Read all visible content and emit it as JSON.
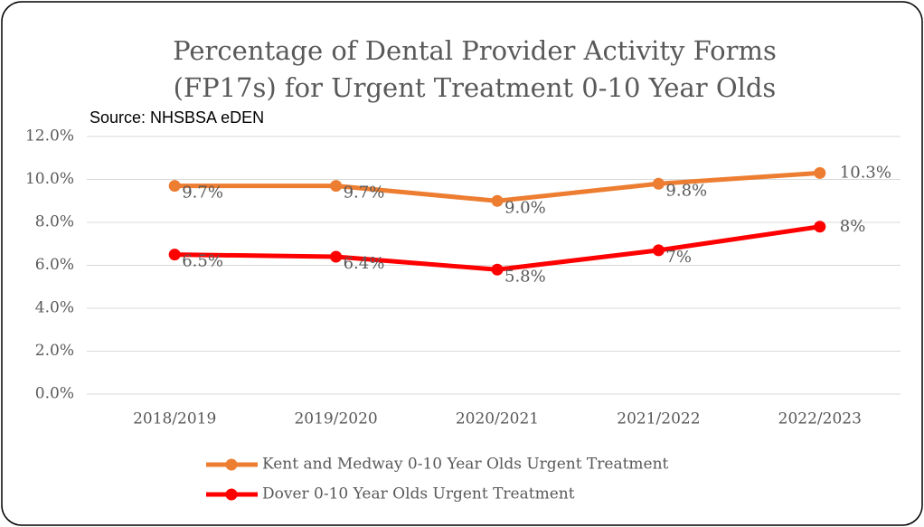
{
  "chart_data": {
    "type": "line",
    "title": [
      "Percentage of Dental Provider Activity Forms",
      "(FP17s) for Urgent Treatment 0-10 Year Olds"
    ],
    "subtitle": "Source: NHSBSA eDEN",
    "categories": [
      "2018/2019",
      "2019/2020",
      "2020/2021",
      "2021/2022",
      "2022/2023"
    ],
    "series": [
      {
        "name": "Kent and Medway 0-10 Year Olds Urgent Treatment",
        "color": "#ed7d31",
        "values": [
          9.7,
          9.7,
          9.0,
          9.8,
          10.3
        ],
        "value_labels": [
          "9.7%",
          "9.7%",
          "9.0%",
          "9.8%",
          "10.3%"
        ]
      },
      {
        "name": "Dover 0-10 Year Olds Urgent Treatment",
        "color": "#ff0000",
        "values": [
          6.5,
          6.4,
          5.8,
          6.7,
          7.8
        ],
        "value_labels": [
          "6.5%",
          "6.4%",
          "5.8%",
          "7%",
          "8%"
        ]
      }
    ],
    "ylim": [
      0,
      12
    ],
    "yticks": [
      {
        "value": 0,
        "label": "0.0%"
      },
      {
        "value": 2,
        "label": "2.0%"
      },
      {
        "value": 4,
        "label": "4.0%"
      },
      {
        "value": 6,
        "label": "6.0%"
      },
      {
        "value": 8,
        "label": "8.0%"
      },
      {
        "value": 10,
        "label": "10.0%"
      },
      {
        "value": 12,
        "label": "12.0%"
      }
    ],
    "grid": true,
    "legend": "bottom"
  }
}
